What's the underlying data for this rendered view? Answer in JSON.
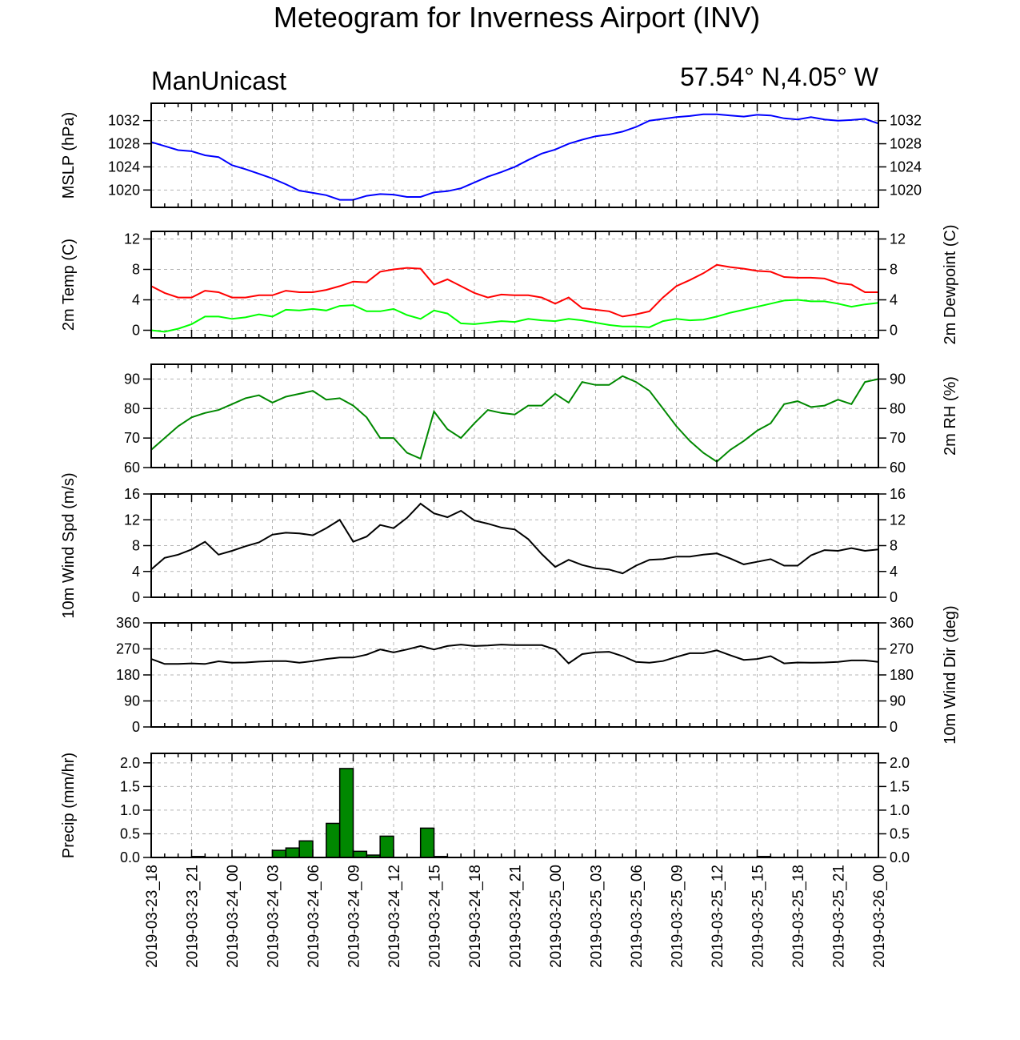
{
  "title": "Meteogram for Inverness Airport (INV)",
  "model": "ManUnicast",
  "location": "57.54° N,4.05° W",
  "colors": {
    "mslp": "#0000ff",
    "temp": "#ff0000",
    "dewpoint": "#00ff00",
    "rh": "#008800",
    "wind": "#000000",
    "precip": "#008800"
  },
  "x_tick_labels": [
    "2019-03-23_18",
    "2019-03-23_21",
    "2019-03-24_00",
    "2019-03-24_03",
    "2019-03-24_06",
    "2019-03-24_09",
    "2019-03-24_12",
    "2019-03-24_15",
    "2019-03-24_18",
    "2019-03-24_21",
    "2019-03-25_00",
    "2019-03-25_03",
    "2019-03-25_06",
    "2019-03-25_09",
    "2019-03-25_12",
    "2019-03-25_15",
    "2019-03-25_18",
    "2019-03-25_21",
    "2019-03-26_00"
  ],
  "chart_data": [
    {
      "type": "line",
      "ylabel_left": "MSLP (hPa)",
      "ylabel_right": "",
      "ylim": [
        1017,
        1035
      ],
      "yticks": [
        1020,
        1024,
        1028,
        1032
      ],
      "x_start": "2019-03-23_18",
      "x_step_hours": 1,
      "series": [
        {
          "values": [
            1028.3,
            1027.6,
            1026.9,
            1026.7,
            1026.0,
            1025.7,
            1024.3,
            1023.6,
            1022.8,
            1022.0,
            1021.0,
            1019.9,
            1019.5,
            1019.1,
            1018.3,
            1018.3,
            1019.0,
            1019.3,
            1019.2,
            1018.8,
            1018.8,
            1019.6,
            1019.8,
            1020.3,
            1021.3,
            1022.3,
            1023.1,
            1024.0,
            1025.2,
            1026.3,
            1027.0,
            1028.0,
            1028.7,
            1029.3,
            1029.6,
            1030.1,
            1030.9,
            1032.0,
            1032.3,
            1032.6,
            1032.8,
            1033.1,
            1033.1,
            1032.9,
            1032.7,
            1033.0,
            1032.9,
            1032.4,
            1032.2,
            1032.6,
            1032.2,
            1032.0,
            1032.1,
            1032.3,
            1031.5
          ]
        }
      ]
    },
    {
      "type": "line",
      "ylabel_left": "2m Temp (C)",
      "ylabel_right": "2m Dewpoint (C)",
      "ylim": [
        -1,
        13
      ],
      "yticks": [
        0,
        4,
        8,
        12
      ],
      "x_start": "2019-03-23_18",
      "x_step_hours": 1,
      "series": [
        {
          "values": [
            5.8,
            4.9,
            4.3,
            4.3,
            5.2,
            5.0,
            4.3,
            4.3,
            4.6,
            4.6,
            5.2,
            5.0,
            5.0,
            5.3,
            5.8,
            6.4,
            6.3,
            7.7,
            8.0,
            8.2,
            8.1,
            6.0,
            6.7,
            5.8,
            4.9,
            4.3,
            4.7,
            4.6,
            4.6,
            4.3,
            3.5,
            4.3,
            2.9,
            2.7,
            2.5,
            1.8,
            2.1,
            2.5,
            4.3,
            5.8,
            6.6,
            7.5,
            8.6,
            8.3,
            8.1,
            7.8,
            7.7,
            7.0,
            6.9,
            6.9,
            6.8,
            6.2,
            6.0,
            5.0,
            5.0
          ]
        },
        {
          "values": [
            0.0,
            -0.2,
            0.2,
            0.8,
            1.8,
            1.8,
            1.5,
            1.7,
            2.1,
            1.8,
            2.7,
            2.6,
            2.8,
            2.6,
            3.2,
            3.3,
            2.5,
            2.5,
            2.8,
            2.0,
            1.5,
            2.6,
            2.2,
            0.9,
            0.8,
            1.0,
            1.2,
            1.1,
            1.5,
            1.3,
            1.2,
            1.5,
            1.3,
            1.0,
            0.7,
            0.5,
            0.5,
            0.4,
            1.2,
            1.5,
            1.3,
            1.4,
            1.8,
            2.3,
            2.7,
            3.1,
            3.5,
            3.9,
            4.0,
            3.8,
            3.8,
            3.5,
            3.1,
            3.4,
            3.6
          ]
        }
      ]
    },
    {
      "type": "line",
      "ylabel_left": "",
      "ylabel_right": "2m RH (%)",
      "ylim": [
        60,
        95
      ],
      "yticks": [
        60,
        70,
        80,
        90
      ],
      "x_start": "2019-03-23_18",
      "x_step_hours": 1,
      "series": [
        {
          "values": [
            66,
            70,
            74,
            77,
            78.5,
            79.5,
            81.5,
            83.5,
            84.5,
            82,
            84,
            85,
            86,
            83,
            83.5,
            81,
            77,
            70,
            70,
            65,
            63,
            79,
            73,
            70,
            75,
            79.5,
            78.5,
            78,
            81,
            81,
            85,
            82,
            89,
            88,
            88,
            91,
            89,
            86,
            80,
            74,
            69,
            65,
            62,
            66,
            69,
            72.5,
            75,
            81.5,
            82.5,
            80.5,
            81,
            83,
            81.5,
            89,
            90
          ]
        }
      ]
    },
    {
      "type": "line",
      "ylabel_left": "10m Wind Spd (m/s)",
      "ylabel_right": "",
      "ylim": [
        0,
        16
      ],
      "yticks": [
        0,
        4,
        8,
        12,
        16
      ],
      "x_start": "2019-03-23_18",
      "x_step_hours": 1,
      "series": [
        {
          "values": [
            4.3,
            6.1,
            6.6,
            7.4,
            8.6,
            6.6,
            7.2,
            7.9,
            8.5,
            9.7,
            10.0,
            9.9,
            9.6,
            10.7,
            12.0,
            8.6,
            9.4,
            11.2,
            10.7,
            12.3,
            14.5,
            13.0,
            12.4,
            13.4,
            11.9,
            11.4,
            10.8,
            10.5,
            9.0,
            6.7,
            4.7,
            5.8,
            5.0,
            4.5,
            4.3,
            3.7,
            4.9,
            5.8,
            5.9,
            6.3,
            6.3,
            6.6,
            6.8,
            6.0,
            5.1,
            5.5,
            5.9,
            4.9,
            4.9,
            6.5,
            7.3,
            7.2,
            7.6,
            7.2,
            7.4
          ]
        }
      ]
    },
    {
      "type": "line",
      "ylabel_left": "",
      "ylabel_right": "10m Wind Dir (deg)",
      "ylim": [
        0,
        360
      ],
      "yticks": [
        0,
        90,
        180,
        270,
        360
      ],
      "x_start": "2019-03-23_18",
      "x_step_hours": 1,
      "series": [
        {
          "values": [
            235,
            218,
            218,
            220,
            218,
            227,
            222,
            223,
            226,
            228,
            228,
            222,
            228,
            235,
            240,
            240,
            250,
            268,
            258,
            268,
            280,
            268,
            280,
            285,
            280,
            282,
            285,
            283,
            283,
            283,
            268,
            220,
            252,
            258,
            260,
            245,
            225,
            222,
            228,
            242,
            255,
            255,
            265,
            248,
            232,
            235,
            245,
            220,
            223,
            222,
            223,
            225,
            230,
            230,
            225
          ]
        }
      ]
    },
    {
      "type": "bar",
      "ylabel_left": "Precip (mm/hr)",
      "ylabel_right": "",
      "ylim": [
        0,
        2.2
      ],
      "yticks": [
        0.0,
        0.5,
        1.0,
        1.5,
        2.0
      ],
      "x_start": "2019-03-23_18",
      "x_step_hours": 1,
      "values": [
        0,
        0,
        0,
        0.02,
        0,
        0,
        0.01,
        0,
        0,
        0.15,
        0.2,
        0.35,
        0,
        0.72,
        1.88,
        0.13,
        0.05,
        0.45,
        0,
        0,
        0.62,
        0.02,
        0,
        0,
        0,
        0,
        0,
        0,
        0,
        0,
        0,
        0,
        0,
        0,
        0,
        0,
        0,
        0,
        0,
        0,
        0,
        0,
        0,
        0,
        0,
        0.02,
        0,
        0,
        0,
        0,
        0,
        0,
        0,
        0
      ]
    }
  ]
}
